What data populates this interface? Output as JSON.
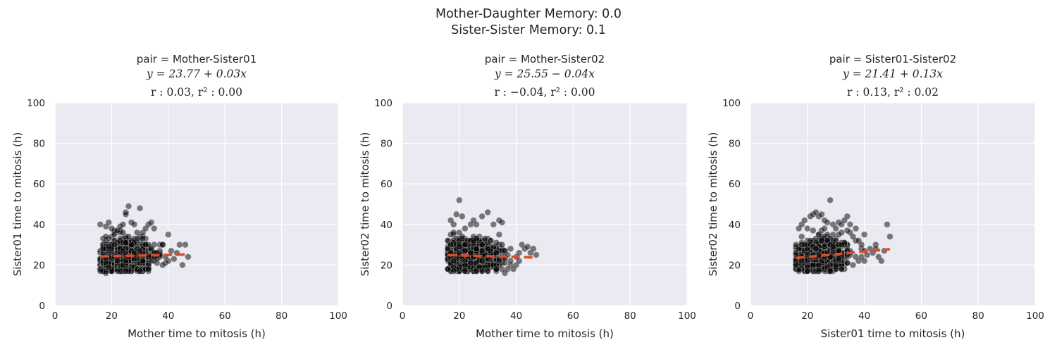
{
  "figure": {
    "suptitle_lines": [
      "Mother-Daughter Memory: 0.0",
      "Sister-Sister Memory: 0.1"
    ]
  },
  "style": {
    "axes_bg": "#eaeaf2",
    "grid": "#ffffff",
    "point_color": "#000000",
    "point_edge": "#d0d0d0",
    "fit_color": "#e04a2a"
  },
  "chart_data": [
    {
      "type": "scatter",
      "title": "pair = Mother-Sister01",
      "equation": "y = 23.77 + 0.03x",
      "stats": "r : 0.03, r² : 0.00",
      "xlabel": "Mother time to mitosis (h)",
      "ylabel": "Sister01 time to mitosis (h)",
      "xlim": [
        0,
        100
      ],
      "ylim": [
        0,
        100
      ],
      "xticks": [
        0,
        20,
        40,
        60,
        80,
        100
      ],
      "yticks": [
        0,
        20,
        40,
        60,
        80,
        100
      ],
      "grid": true,
      "fit": {
        "intercept": 23.77,
        "slope": 0.03,
        "x_range": [
          16,
          47
        ]
      },
      "cloud": {
        "x_min": 16,
        "x_max": 47,
        "y_min": 16,
        "y_max": 49,
        "center_x": 24,
        "center_y": 24
      },
      "points": [
        [
          16,
          40
        ],
        [
          17,
          17
        ],
        [
          18,
          39
        ],
        [
          19,
          41
        ],
        [
          20,
          38
        ],
        [
          22,
          37
        ],
        [
          23,
          39
        ],
        [
          24,
          40
        ],
        [
          25,
          46
        ],
        [
          25,
          45
        ],
        [
          26,
          49
        ],
        [
          27,
          41
        ],
        [
          28,
          40
        ],
        [
          29,
          36
        ],
        [
          30,
          48
        ],
        [
          31,
          36
        ],
        [
          32,
          38
        ],
        [
          33,
          40
        ],
        [
          34,
          41
        ],
        [
          35,
          38
        ],
        [
          37,
          25
        ],
        [
          38,
          30
        ],
        [
          40,
          35
        ],
        [
          41,
          27
        ],
        [
          42,
          23
        ],
        [
          43,
          26
        ],
        [
          44,
          30
        ],
        [
          45,
          20
        ],
        [
          46,
          30
        ],
        [
          47,
          24
        ],
        [
          38,
          20
        ],
        [
          40,
          22
        ],
        [
          36,
          26
        ],
        [
          39,
          24
        ],
        [
          16,
          17
        ],
        [
          18,
          16
        ],
        [
          22,
          17
        ],
        [
          26,
          17
        ],
        [
          30,
          17
        ],
        [
          33,
          18
        ],
        [
          34,
          22
        ],
        [
          35,
          24
        ],
        [
          36,
          23
        ]
      ]
    },
    {
      "type": "scatter",
      "title": "pair = Mother-Sister02",
      "equation": "y = 25.55 − 0.04x",
      "stats": "r : −0.04, r² : 0.00",
      "xlabel": "Mother time to mitosis (h)",
      "ylabel": "Sister02 time to mitosis (h)",
      "xlim": [
        0,
        100
      ],
      "ylim": [
        0,
        100
      ],
      "xticks": [
        0,
        20,
        40,
        60,
        80,
        100
      ],
      "yticks": [
        0,
        20,
        40,
        60,
        80,
        100
      ],
      "grid": true,
      "fit": {
        "intercept": 25.55,
        "slope": -0.04,
        "x_range": [
          16,
          47
        ]
      },
      "cloud": {
        "x_min": 16,
        "x_max": 47,
        "y_min": 16,
        "y_max": 52,
        "center_x": 24,
        "center_y": 24
      },
      "points": [
        [
          16,
          18
        ],
        [
          17,
          42
        ],
        [
          18,
          40
        ],
        [
          19,
          45
        ],
        [
          20,
          52
        ],
        [
          21,
          44
        ],
        [
          22,
          38
        ],
        [
          24,
          40
        ],
        [
          25,
          42
        ],
        [
          26,
          40
        ],
        [
          28,
          44
        ],
        [
          30,
          46
        ],
        [
          32,
          40
        ],
        [
          34,
          42
        ],
        [
          35,
          41
        ],
        [
          36,
          27
        ],
        [
          37,
          25
        ],
        [
          38,
          22
        ],
        [
          39,
          18
        ],
        [
          40,
          24
        ],
        [
          41,
          26
        ],
        [
          42,
          30
        ],
        [
          43,
          28
        ],
        [
          44,
          29
        ],
        [
          45,
          26
        ],
        [
          46,
          28
        ],
        [
          47,
          25
        ],
        [
          36,
          16
        ],
        [
          33,
          18
        ],
        [
          30,
          17
        ],
        [
          26,
          17
        ],
        [
          22,
          17
        ],
        [
          18,
          17
        ],
        [
          34,
          22
        ],
        [
          35,
          30
        ],
        [
          38,
          28
        ],
        [
          40,
          20
        ],
        [
          41,
          22
        ]
      ]
    },
    {
      "type": "scatter",
      "title": "pair = Sister01-Sister02",
      "equation": "y = 21.41 + 0.13x",
      "stats": "r : 0.13, r² : 0.02",
      "xlabel": "Sister01 time to mitosis (h)",
      "ylabel": "Sister02 time to mitosis (h)",
      "xlim": [
        0,
        100
      ],
      "ylim": [
        0,
        100
      ],
      "xticks": [
        0,
        20,
        40,
        60,
        80,
        100
      ],
      "yticks": [
        0,
        20,
        40,
        60,
        80,
        100
      ],
      "grid": true,
      "fit": {
        "intercept": 21.41,
        "slope": 0.13,
        "x_range": [
          16,
          49
        ]
      },
      "cloud": {
        "x_min": 16,
        "x_max": 49,
        "y_min": 16,
        "y_max": 52,
        "center_x": 24,
        "center_y": 24
      },
      "points": [
        [
          16,
          20
        ],
        [
          17,
          38
        ],
        [
          18,
          40
        ],
        [
          19,
          42
        ],
        [
          20,
          38
        ],
        [
          21,
          44
        ],
        [
          22,
          45
        ],
        [
          23,
          46
        ],
        [
          24,
          44
        ],
        [
          25,
          45
        ],
        [
          26,
          42
        ],
        [
          27,
          41
        ],
        [
          28,
          52
        ],
        [
          29,
          40
        ],
        [
          30,
          38
        ],
        [
          31,
          41
        ],
        [
          32,
          40
        ],
        [
          33,
          42
        ],
        [
          34,
          44
        ],
        [
          35,
          40
        ],
        [
          36,
          34
        ],
        [
          37,
          38
        ],
        [
          38,
          32
        ],
        [
          39,
          30
        ],
        [
          40,
          27
        ],
        [
          41,
          25
        ],
        [
          42,
          28
        ],
        [
          43,
          26
        ],
        [
          44,
          30
        ],
        [
          45,
          24
        ],
        [
          46,
          22
        ],
        [
          47,
          27
        ],
        [
          48,
          40
        ],
        [
          49,
          34
        ],
        [
          17,
          17
        ],
        [
          20,
          17
        ],
        [
          24,
          17
        ],
        [
          28,
          17
        ],
        [
          32,
          18
        ],
        [
          36,
          20
        ],
        [
          40,
          22
        ],
        [
          44,
          28
        ]
      ]
    }
  ]
}
